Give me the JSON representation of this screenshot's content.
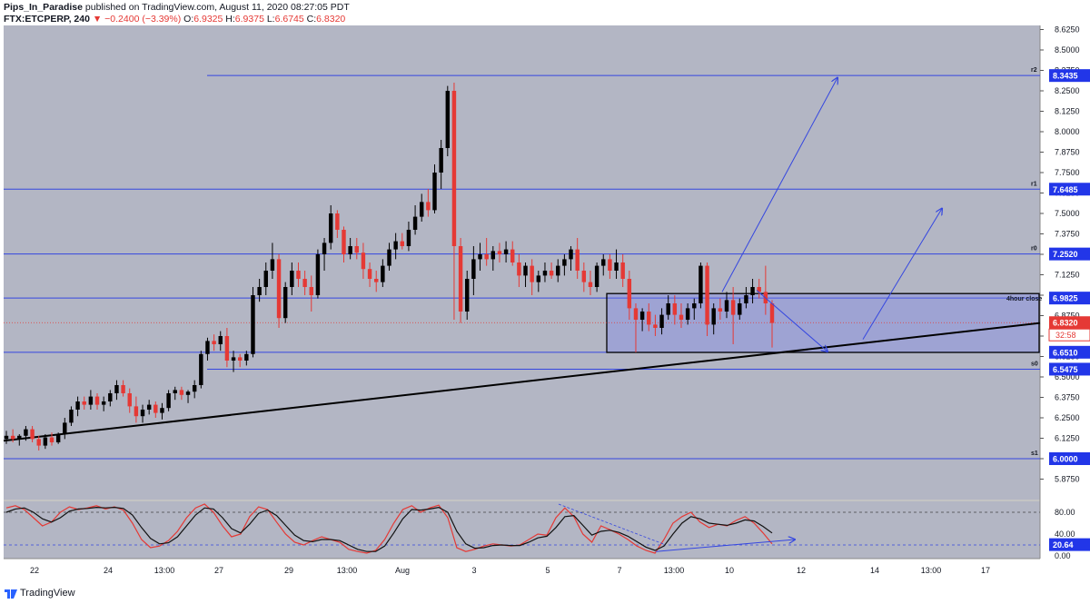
{
  "header": {
    "author": "Pips_In_Paradise",
    "published_text": "published on TradingView.com, August 11, 2020 08:27:05 PDT",
    "symbol": "FTX:ETCPERP, 240",
    "change": "−0.2400 (−3.39%)",
    "open_label": "O:",
    "open": "6.9325",
    "high_label": "H:",
    "high": "6.9375",
    "low_label": "L:",
    "low": "6.6745",
    "close_label": "C:",
    "close": "6.8320"
  },
  "footer": {
    "brand": "TradingView"
  },
  "colors": {
    "background": "#b3b6c4",
    "up": "#000000",
    "down": "#e53935",
    "level_line": "#3446e0",
    "label_bg": "#2236e8",
    "price_label_bg": "#e53935"
  },
  "chart_data": [
    {
      "type": "candlestick",
      "ylim": [
        5.75,
        8.65
      ],
      "y_ticks": [
        "8.6250",
        "8.5000",
        "8.3750",
        "8.2500",
        "8.1250",
        "8.0000",
        "7.8750",
        "7.7500",
        "7.6250",
        "7.5000",
        "7.3750",
        "7.2500",
        "7.1250",
        "7.0000",
        "6.8750",
        "6.7500",
        "6.6250",
        "6.5000",
        "6.3750",
        "6.2500",
        "6.1250",
        "6.0000",
        "5.8750"
      ],
      "x_tick_labels": [
        "22",
        "24",
        "13:00",
        "27",
        "29",
        "13:00",
        "Aug",
        "3",
        "5",
        "7",
        "13:00",
        "10",
        "12",
        "14",
        "13:00",
        "17"
      ],
      "levels": [
        {
          "name": "r2",
          "value": 8.3435,
          "label": "8.3435"
        },
        {
          "name": "r1",
          "value": 7.6485,
          "label": "7.6485"
        },
        {
          "name": "r0",
          "value": 7.252,
          "label": "7.2520"
        },
        {
          "name": "",
          "value": 6.9825,
          "label": "6.9825"
        },
        {
          "name": "",
          "value": 6.651,
          "label": "6.6510"
        },
        {
          "name": "s0",
          "value": 6.5475,
          "label": "6.5475"
        },
        {
          "name": "s1",
          "value": 6.0,
          "label": "6.0000"
        }
      ],
      "current_price": {
        "value": 6.832,
        "label": "6.8320",
        "countdown": "32:58"
      },
      "annotations": [
        {
          "type": "rectangle",
          "text": "4hour close",
          "top": 7.01,
          "bottom": 6.65
        },
        {
          "type": "trendline",
          "from": 6.11,
          "to": 6.83
        }
      ],
      "candles": [
        [
          6.12,
          6.17,
          6.09,
          6.14
        ],
        [
          6.14,
          6.18,
          6.1,
          6.12
        ],
        [
          6.12,
          6.15,
          6.08,
          6.14
        ],
        [
          6.14,
          6.2,
          6.11,
          6.18
        ],
        [
          6.18,
          6.2,
          6.1,
          6.12
        ],
        [
          6.12,
          6.14,
          6.05,
          6.08
        ],
        [
          6.08,
          6.15,
          6.06,
          6.13
        ],
        [
          6.13,
          6.16,
          6.08,
          6.1
        ],
        [
          6.1,
          6.16,
          6.09,
          6.15
        ],
        [
          6.15,
          6.25,
          6.12,
          6.22
        ],
        [
          6.22,
          6.32,
          6.2,
          6.3
        ],
        [
          6.3,
          6.38,
          6.26,
          6.35
        ],
        [
          6.35,
          6.38,
          6.3,
          6.33
        ],
        [
          6.33,
          6.42,
          6.3,
          6.38
        ],
        [
          6.38,
          6.4,
          6.3,
          6.33
        ],
        [
          6.33,
          6.38,
          6.29,
          6.35
        ],
        [
          6.35,
          6.42,
          6.32,
          6.4
        ],
        [
          6.4,
          6.48,
          6.36,
          6.45
        ],
        [
          6.45,
          6.48,
          6.38,
          6.4
        ],
        [
          6.4,
          6.43,
          6.28,
          6.32
        ],
        [
          6.32,
          6.38,
          6.22,
          6.26
        ],
        [
          6.26,
          6.33,
          6.22,
          6.3
        ],
        [
          6.3,
          6.36,
          6.27,
          6.33
        ],
        [
          6.33,
          6.35,
          6.25,
          6.28
        ],
        [
          6.28,
          6.34,
          6.24,
          6.31
        ],
        [
          6.31,
          6.42,
          6.29,
          6.4
        ],
        [
          6.4,
          6.44,
          6.36,
          6.42
        ],
        [
          6.42,
          6.44,
          6.36,
          6.39
        ],
        [
          6.39,
          6.42,
          6.34,
          6.41
        ],
        [
          6.41,
          6.48,
          6.37,
          6.45
        ],
        [
          6.45,
          6.66,
          6.43,
          6.64
        ],
        [
          6.64,
          6.74,
          6.6,
          6.72
        ],
        [
          6.72,
          6.76,
          6.66,
          6.7
        ],
        [
          6.7,
          6.78,
          6.66,
          6.75
        ],
        [
          6.75,
          6.8,
          6.56,
          6.6
        ],
        [
          6.6,
          6.66,
          6.53,
          6.62
        ],
        [
          6.62,
          6.64,
          6.56,
          6.6
        ],
        [
          6.6,
          6.66,
          6.57,
          6.64
        ],
        [
          6.64,
          7.05,
          6.62,
          7.0
        ],
        [
          7.0,
          7.1,
          6.96,
          7.05
        ],
        [
          7.05,
          7.2,
          7.0,
          7.15
        ],
        [
          7.15,
          7.32,
          7.1,
          7.22
        ],
        [
          7.22,
          7.25,
          6.8,
          6.86
        ],
        [
          6.86,
          7.08,
          6.83,
          7.05
        ],
        [
          7.05,
          7.2,
          7.0,
          7.15
        ],
        [
          7.15,
          7.2,
          7.05,
          7.1
        ],
        [
          7.1,
          7.15,
          7.0,
          7.05
        ],
        [
          7.05,
          7.12,
          6.9,
          7.0
        ],
        [
          7.0,
          7.28,
          6.98,
          7.25
        ],
        [
          7.25,
          7.35,
          7.15,
          7.32
        ],
        [
          7.32,
          7.55,
          7.28,
          7.5
        ],
        [
          7.5,
          7.52,
          7.35,
          7.4
        ],
        [
          7.4,
          7.42,
          7.2,
          7.25
        ],
        [
          7.25,
          7.35,
          7.22,
          7.3
        ],
        [
          7.3,
          7.35,
          7.22,
          7.26
        ],
        [
          7.26,
          7.32,
          7.1,
          7.16
        ],
        [
          7.16,
          7.2,
          7.05,
          7.1
        ],
        [
          7.1,
          7.15,
          7.02,
          7.08
        ],
        [
          7.08,
          7.22,
          7.05,
          7.18
        ],
        [
          7.18,
          7.32,
          7.15,
          7.28
        ],
        [
          7.28,
          7.38,
          7.22,
          7.33
        ],
        [
          7.33,
          7.38,
          7.28,
          7.3
        ],
        [
          7.3,
          7.45,
          7.27,
          7.4
        ],
        [
          7.4,
          7.55,
          7.37,
          7.48
        ],
        [
          7.48,
          7.62,
          7.45,
          7.57
        ],
        [
          7.57,
          7.65,
          7.48,
          7.52
        ],
        [
          7.52,
          7.8,
          7.5,
          7.75
        ],
        [
          7.75,
          7.95,
          7.65,
          7.9
        ],
        [
          7.9,
          8.28,
          7.85,
          8.25
        ],
        [
          8.25,
          8.3,
          6.85,
          7.3
        ],
        [
          7.3,
          7.35,
          6.83,
          6.9
        ],
        [
          6.9,
          7.15,
          6.85,
          7.1
        ],
        [
          7.1,
          7.3,
          7.0,
          7.22
        ],
        [
          7.22,
          7.32,
          7.15,
          7.25
        ],
        [
          7.25,
          7.35,
          7.18,
          7.22
        ],
        [
          7.22,
          7.3,
          7.15,
          7.27
        ],
        [
          7.27,
          7.32,
          7.2,
          7.25
        ],
        [
          7.25,
          7.33,
          7.2,
          7.28
        ],
        [
          7.28,
          7.33,
          7.18,
          7.2
        ],
        [
          7.2,
          7.25,
          7.05,
          7.12
        ],
        [
          7.12,
          7.2,
          7.05,
          7.18
        ],
        [
          7.18,
          7.22,
          7.0,
          7.08
        ],
        [
          7.08,
          7.15,
          7.02,
          7.12
        ],
        [
          7.12,
          7.2,
          7.08,
          7.15
        ],
        [
          7.15,
          7.2,
          7.1,
          7.12
        ],
        [
          7.12,
          7.22,
          7.08,
          7.18
        ],
        [
          7.18,
          7.25,
          7.12,
          7.22
        ],
        [
          7.22,
          7.3,
          7.15,
          7.28
        ],
        [
          7.28,
          7.35,
          7.1,
          7.15
        ],
        [
          7.15,
          7.2,
          7.02,
          7.08
        ],
        [
          7.08,
          7.15,
          7.0,
          7.05
        ],
        [
          7.05,
          7.2,
          7.02,
          7.18
        ],
        [
          7.18,
          7.25,
          7.12,
          7.22
        ],
        [
          7.22,
          7.25,
          7.1,
          7.15
        ],
        [
          7.15,
          7.28,
          7.1,
          7.2
        ],
        [
          7.2,
          7.25,
          7.05,
          7.1
        ],
        [
          7.1,
          7.15,
          6.85,
          6.92
        ],
        [
          6.92,
          6.95,
          6.65,
          6.85
        ],
        [
          6.85,
          6.92,
          6.78,
          6.9
        ],
        [
          6.9,
          6.95,
          6.78,
          6.82
        ],
        [
          6.82,
          6.88,
          6.75,
          6.8
        ],
        [
          6.8,
          6.92,
          6.76,
          6.88
        ],
        [
          6.88,
          7.0,
          6.85,
          6.95
        ],
        [
          6.95,
          7.0,
          6.82,
          6.88
        ],
        [
          6.88,
          6.95,
          6.8,
          6.85
        ],
        [
          6.85,
          6.95,
          6.82,
          6.92
        ],
        [
          6.92,
          6.98,
          6.85,
          6.95
        ],
        [
          6.95,
          7.2,
          6.92,
          7.18
        ],
        [
          7.18,
          7.2,
          6.75,
          6.82
        ],
        [
          6.82,
          6.95,
          6.76,
          6.92
        ],
        [
          6.92,
          6.98,
          6.85,
          6.9
        ],
        [
          6.9,
          7.02,
          6.86,
          6.97
        ],
        [
          6.97,
          7.05,
          6.7,
          6.88
        ],
        [
          6.88,
          6.98,
          6.85,
          6.95
        ],
        [
          6.95,
          7.05,
          6.92,
          7.0
        ],
        [
          7.0,
          7.1,
          6.95,
          7.05
        ],
        [
          7.05,
          7.1,
          6.98,
          7.02
        ],
        [
          7.02,
          7.18,
          6.88,
          6.95
        ],
        [
          6.95,
          6.97,
          6.68,
          6.83
        ]
      ]
    },
    {
      "type": "line",
      "ylim": [
        -5,
        100
      ],
      "y_ticks": [
        "80.00",
        "40.00",
        "20.64",
        "0.00"
      ],
      "current": {
        "value": 20.64,
        "label": "20.64"
      },
      "series": [
        {
          "name": "",
          "color": "#e53935",
          "values": [
            88,
            92,
            85,
            70,
            55,
            62,
            80,
            90,
            85,
            88,
            92,
            86,
            90,
            84,
            60,
            30,
            15,
            18,
            28,
            45,
            70,
            88,
            95,
            80,
            55,
            35,
            40,
            72,
            90,
            85,
            62,
            40,
            25,
            20,
            28,
            35,
            30,
            25,
            12,
            8,
            5,
            10,
            30,
            60,
            85,
            92,
            80,
            88,
            93,
            70,
            15,
            8,
            12,
            18,
            22,
            20,
            18,
            20,
            30,
            40,
            38,
            70,
            88,
            72,
            40,
            25,
            55,
            48,
            40,
            30,
            18,
            10,
            5,
            30,
            60,
            72,
            80,
            62,
            52,
            58,
            55,
            65,
            72,
            60,
            42,
            22
          ]
        },
        {
          "name": "",
          "color": "#111111",
          "values": [
            80,
            86,
            88,
            80,
            68,
            62,
            70,
            82,
            86,
            87,
            89,
            88,
            89,
            87,
            75,
            52,
            32,
            22,
            24,
            35,
            55,
            75,
            88,
            86,
            70,
            50,
            42,
            58,
            78,
            84,
            74,
            56,
            38,
            28,
            26,
            30,
            30,
            28,
            20,
            12,
            8,
            8,
            18,
            42,
            68,
            85,
            84,
            86,
            89,
            80,
            45,
            22,
            14,
            15,
            19,
            20,
            19,
            19,
            25,
            33,
            36,
            52,
            72,
            74,
            56,
            38,
            45,
            47,
            43,
            36,
            26,
            16,
            10,
            18,
            40,
            60,
            72,
            68,
            60,
            58,
            56,
            60,
            66,
            64,
            54,
            42
          ]
        }
      ]
    }
  ]
}
